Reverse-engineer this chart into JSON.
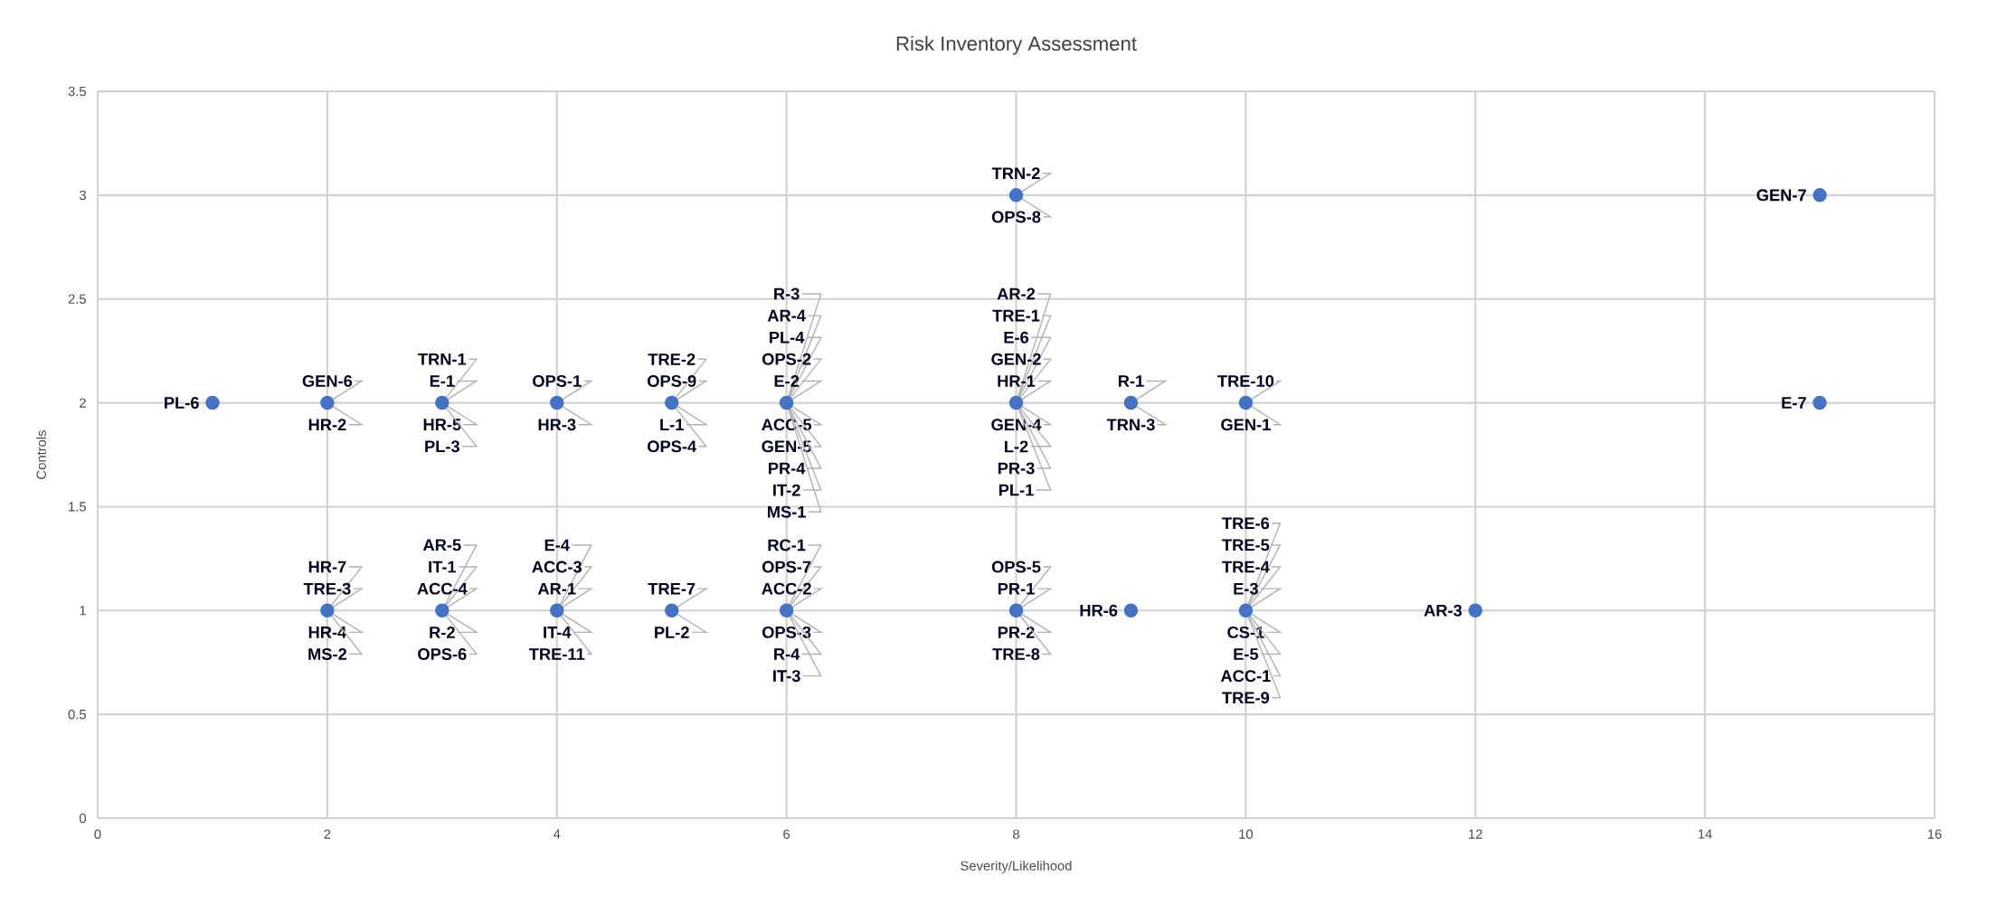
{
  "chart_data": {
    "type": "scatter",
    "title": "Risk Inventory Assessment",
    "xlabel": "Severity/Likelihood",
    "ylabel": "Controls",
    "x": [
      1,
      2,
      3,
      4,
      5,
      6,
      8,
      15,
      8,
      9,
      10,
      15,
      2,
      3,
      4,
      5,
      6,
      8,
      9,
      10,
      12
    ],
    "values": [
      2,
      2,
      2,
      2,
      2,
      2,
      3,
      3,
      2,
      2,
      2,
      2,
      1,
      1,
      1,
      1,
      1,
      1,
      1,
      1,
      1
    ],
    "color": "#4472c4",
    "grid": true,
    "xlim": [
      0,
      16
    ],
    "ylim": [
      0,
      3.5
    ],
    "xticks": [
      0,
      2,
      4,
      6,
      8,
      10,
      12,
      14,
      16
    ],
    "yticks": [
      0,
      0.5,
      1,
      1.5,
      2,
      2.5,
      3,
      3.5
    ],
    "annotations": [
      {
        "text": "PL-6",
        "x": 1,
        "y": 2
      },
      {
        "text": "GEN-6",
        "x": 2,
        "y": 2
      },
      {
        "text": "HR-2",
        "x": 2,
        "y": 2
      },
      {
        "text": "TRN-1",
        "x": 3,
        "y": 2
      },
      {
        "text": "E-1",
        "x": 3,
        "y": 2
      },
      {
        "text": "HR-5",
        "x": 3,
        "y": 2
      },
      {
        "text": "PL-3",
        "x": 3,
        "y": 2
      },
      {
        "text": "OPS-1",
        "x": 4,
        "y": 2
      },
      {
        "text": "HR-3",
        "x": 4,
        "y": 2
      },
      {
        "text": "TRE-2",
        "x": 5,
        "y": 2
      },
      {
        "text": "OPS-9",
        "x": 5,
        "y": 2
      },
      {
        "text": "L-1",
        "x": 5,
        "y": 2
      },
      {
        "text": "OPS-4",
        "x": 5,
        "y": 2
      },
      {
        "text": "R-3",
        "x": 6,
        "y": 2
      },
      {
        "text": "AR-4",
        "x": 6,
        "y": 2
      },
      {
        "text": "PL-4",
        "x": 6,
        "y": 2
      },
      {
        "text": "OPS-2",
        "x": 6,
        "y": 2
      },
      {
        "text": "E-2",
        "x": 6,
        "y": 2
      },
      {
        "text": "ACC-5",
        "x": 6,
        "y": 2
      },
      {
        "text": "GEN-5",
        "x": 6,
        "y": 2
      },
      {
        "text": "PR-4",
        "x": 6,
        "y": 2
      },
      {
        "text": "IT-2",
        "x": 6,
        "y": 2
      },
      {
        "text": "MS-1",
        "x": 6,
        "y": 2
      },
      {
        "text": "TRN-2",
        "x": 8,
        "y": 3
      },
      {
        "text": "OPS-8",
        "x": 8,
        "y": 3
      },
      {
        "text": "GEN-7",
        "x": 15,
        "y": 3
      },
      {
        "text": "AR-2",
        "x": 8,
        "y": 2
      },
      {
        "text": "TRE-1",
        "x": 8,
        "y": 2
      },
      {
        "text": "E-6",
        "x": 8,
        "y": 2
      },
      {
        "text": "GEN-2",
        "x": 8,
        "y": 2
      },
      {
        "text": "HR-1",
        "x": 8,
        "y": 2
      },
      {
        "text": "GEN-4",
        "x": 8,
        "y": 2
      },
      {
        "text": "L-2",
        "x": 8,
        "y": 2
      },
      {
        "text": "PR-3",
        "x": 8,
        "y": 2
      },
      {
        "text": "PL-1",
        "x": 8,
        "y": 2
      },
      {
        "text": "R-1",
        "x": 9,
        "y": 2
      },
      {
        "text": "TRN-3",
        "x": 9,
        "y": 2
      },
      {
        "text": "TRE-10",
        "x": 10,
        "y": 2
      },
      {
        "text": "GEN-1",
        "x": 10,
        "y": 2
      },
      {
        "text": "E-7",
        "x": 15,
        "y": 2
      },
      {
        "text": "HR-7",
        "x": 2,
        "y": 1
      },
      {
        "text": "TRE-3",
        "x": 2,
        "y": 1
      },
      {
        "text": "HR-4",
        "x": 2,
        "y": 1
      },
      {
        "text": "MS-2",
        "x": 2,
        "y": 1
      },
      {
        "text": "AR-5",
        "x": 3,
        "y": 1
      },
      {
        "text": "IT-1",
        "x": 3,
        "y": 1
      },
      {
        "text": "ACC-4",
        "x": 3,
        "y": 1
      },
      {
        "text": "R-2",
        "x": 3,
        "y": 1
      },
      {
        "text": "OPS-6",
        "x": 3,
        "y": 1
      },
      {
        "text": "E-4",
        "x": 4,
        "y": 1
      },
      {
        "text": "ACC-3",
        "x": 4,
        "y": 1
      },
      {
        "text": "AR-1",
        "x": 4,
        "y": 1
      },
      {
        "text": "IT-4",
        "x": 4,
        "y": 1
      },
      {
        "text": "TRE-11",
        "x": 4,
        "y": 1
      },
      {
        "text": "TRE-7",
        "x": 5,
        "y": 1
      },
      {
        "text": "PL-2",
        "x": 5,
        "y": 1
      },
      {
        "text": "RC-1",
        "x": 6,
        "y": 1
      },
      {
        "text": "OPS-7",
        "x": 6,
        "y": 1
      },
      {
        "text": "ACC-2",
        "x": 6,
        "y": 1
      },
      {
        "text": "OPS-3",
        "x": 6,
        "y": 1
      },
      {
        "text": "R-4",
        "x": 6,
        "y": 1
      },
      {
        "text": "IT-3",
        "x": 6,
        "y": 1
      },
      {
        "text": "OPS-5",
        "x": 8,
        "y": 1
      },
      {
        "text": "PR-1",
        "x": 8,
        "y": 1
      },
      {
        "text": "PR-2",
        "x": 8,
        "y": 1
      },
      {
        "text": "TRE-8",
        "x": 8,
        "y": 1
      },
      {
        "text": "HR-6",
        "x": 9,
        "y": 1
      },
      {
        "text": "TRE-6",
        "x": 10,
        "y": 1
      },
      {
        "text": "TRE-5",
        "x": 10,
        "y": 1
      },
      {
        "text": "TRE-4",
        "x": 10,
        "y": 1
      },
      {
        "text": "E-3",
        "x": 10,
        "y": 1
      },
      {
        "text": "CS-1",
        "x": 10,
        "y": 1
      },
      {
        "text": "E-5",
        "x": 10,
        "y": 1
      },
      {
        "text": "ACC-1",
        "x": 10,
        "y": 1
      },
      {
        "text": "TRE-9",
        "x": 10,
        "y": 1
      },
      {
        "text": "AR-3",
        "x": 12,
        "y": 1
      }
    ]
  }
}
